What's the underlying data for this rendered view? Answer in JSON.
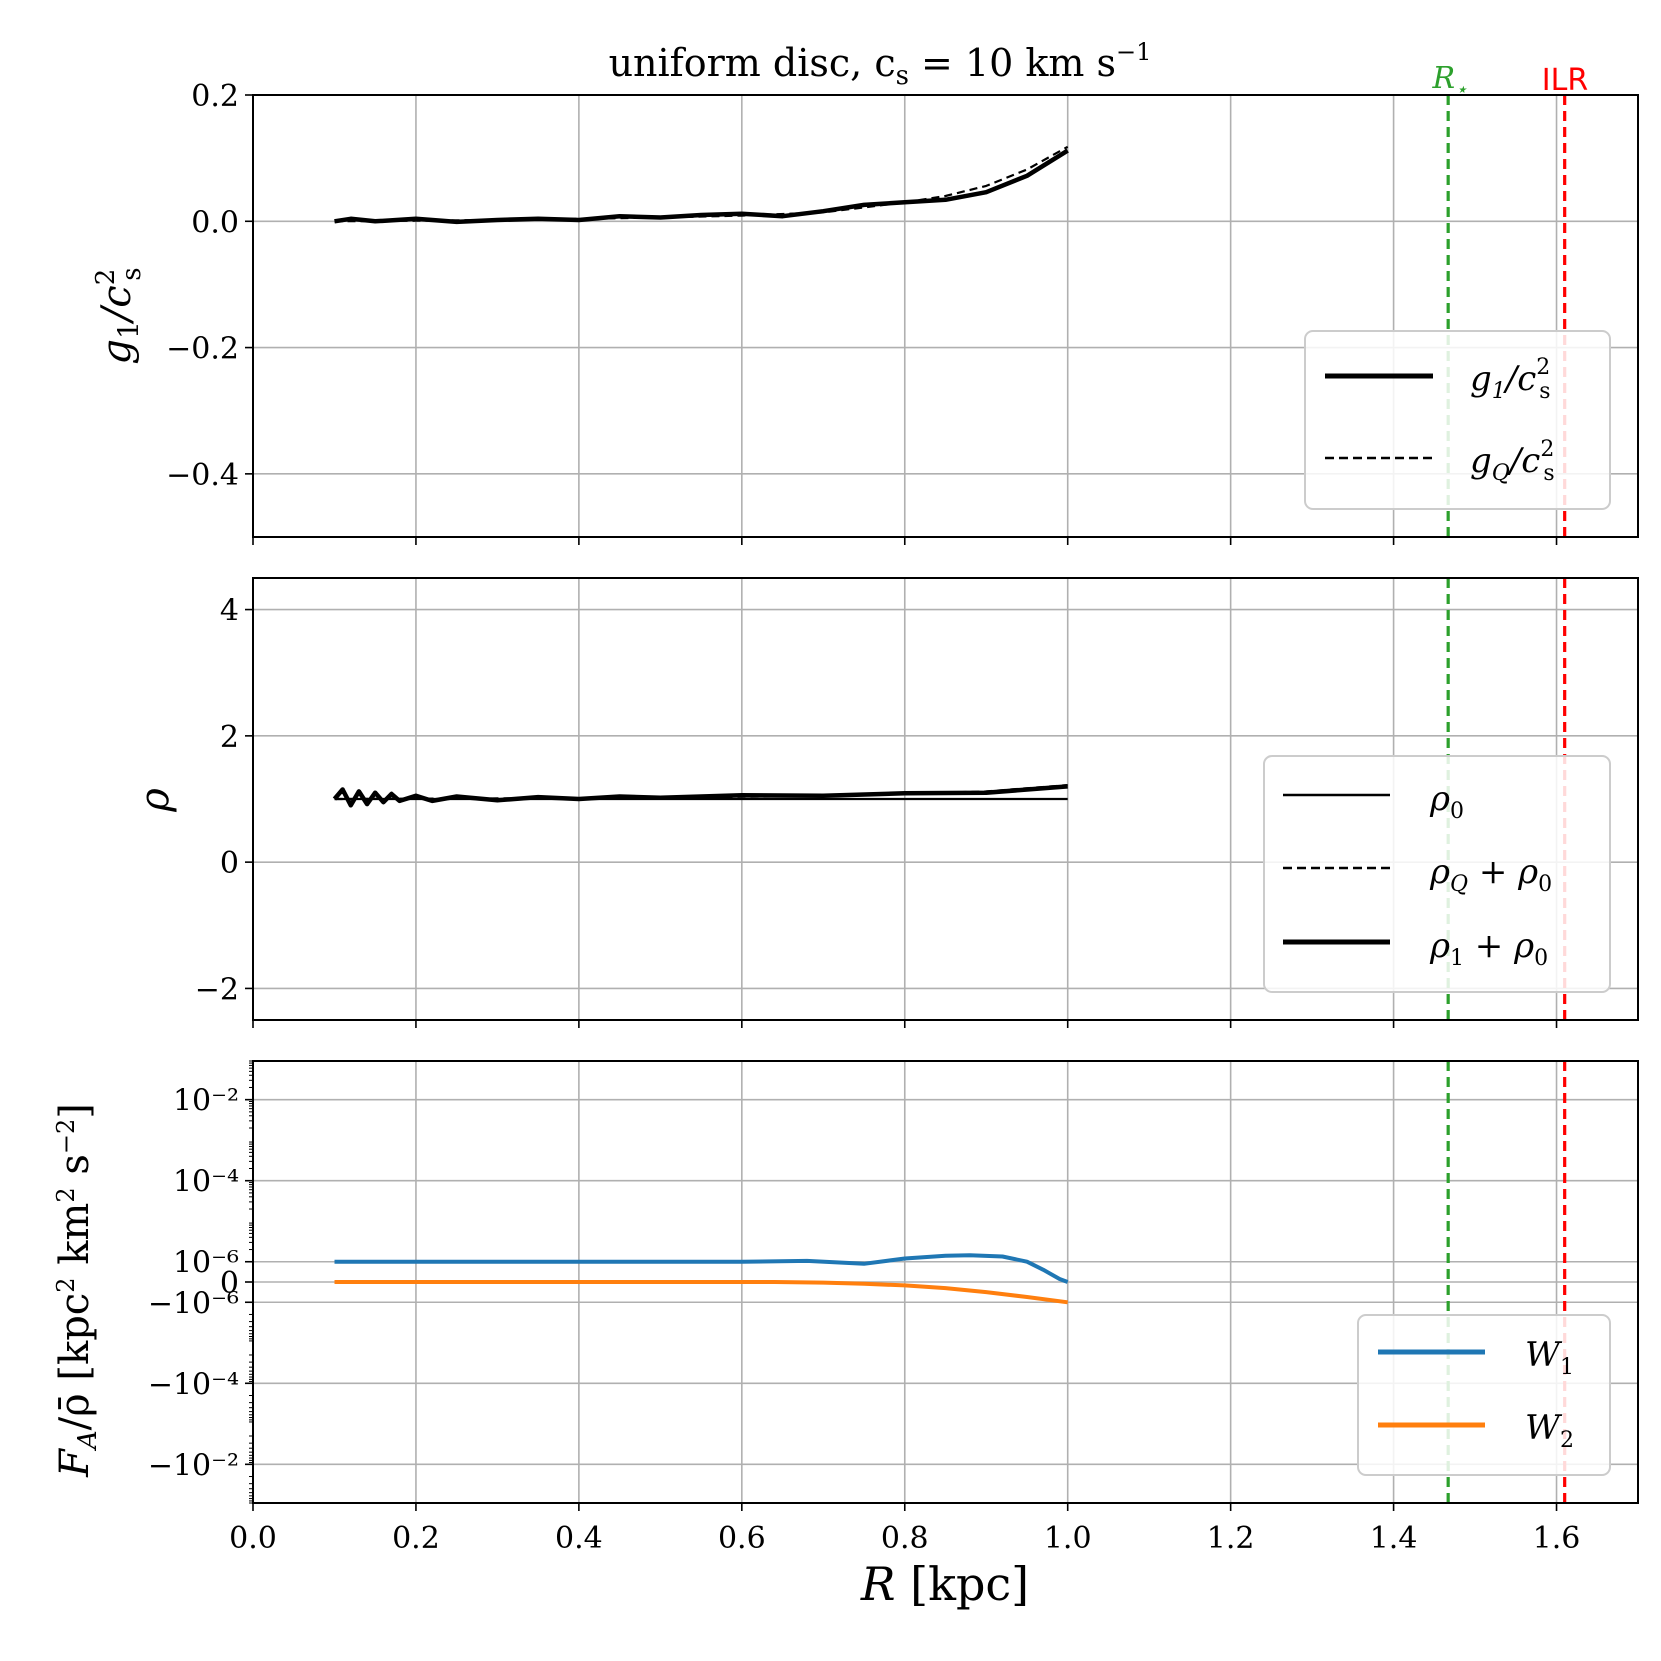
{
  "chart_data": {
    "type": "line",
    "title": "uniform disc, c_s = 10 km s^-1",
    "xlabel": "R [kpc]",
    "xlim": [
      0.0,
      1.7
    ],
    "xticks": [
      "0.0",
      "0.2",
      "0.4",
      "0.6",
      "0.8",
      "1.0",
      "1.2",
      "1.4",
      "1.6"
    ],
    "xtick_values": [
      0.0,
      0.2,
      0.4,
      0.6,
      0.8,
      1.0,
      1.2,
      1.4,
      1.6
    ],
    "vlines": [
      {
        "name": "R⋆",
        "x": 1.467,
        "color": "#2ca02c"
      },
      {
        "name": "ILR",
        "x": 1.61,
        "color": "#ff0000"
      }
    ],
    "panels": [
      {
        "ylabel": "g1/cs²",
        "ylim": [
          -0.5,
          0.2
        ],
        "yticks": [
          "0.2",
          "0.0",
          "−0.2",
          "−0.4"
        ],
        "ytick_values": [
          0.2,
          0.0,
          -0.2,
          -0.4
        ],
        "legend_position": "lower-right",
        "series": [
          {
            "name": "g1/cs²",
            "style": "solid-thick",
            "color": "#000000",
            "x": [
              0.1,
              0.12,
              0.15,
              0.2,
              0.25,
              0.3,
              0.35,
              0.4,
              0.45,
              0.5,
              0.55,
              0.6,
              0.65,
              0.7,
              0.75,
              0.8,
              0.85,
              0.9,
              0.95,
              1.0
            ],
            "y": [
              0.0,
              0.004,
              0.0,
              0.004,
              -0.001,
              0.002,
              0.004,
              0.002,
              0.008,
              0.006,
              0.01,
              0.012,
              0.008,
              0.016,
              0.026,
              0.03,
              0.034,
              0.046,
              0.072,
              0.112
            ]
          },
          {
            "name": "gQ/cs²",
            "style": "dashed",
            "color": "#000000",
            "x": [
              0.1,
              0.2,
              0.3,
              0.4,
              0.5,
              0.6,
              0.7,
              0.75,
              0.8,
              0.85,
              0.9,
              0.95,
              1.0
            ],
            "y": [
              0.0,
              0.001,
              0.002,
              0.004,
              0.006,
              0.009,
              0.014,
              0.022,
              0.03,
              0.04,
              0.056,
              0.082,
              0.118
            ]
          }
        ]
      },
      {
        "ylabel": "ρ",
        "ylim": [
          -2.5,
          4.5
        ],
        "yticks": [
          "4",
          "2",
          "0",
          "−2"
        ],
        "ytick_values": [
          4,
          2,
          0,
          -2
        ],
        "legend_position": "lower-right",
        "series": [
          {
            "name": "ρ0",
            "style": "solid-thin",
            "color": "#000000",
            "x": [
              0.1,
              1.0
            ],
            "y": [
              1.0,
              1.0
            ]
          },
          {
            "name": "ρQ + ρ0",
            "style": "dashed",
            "color": "#000000",
            "x": [
              0.1,
              0.3,
              0.5,
              0.7,
              0.8,
              0.9,
              1.0
            ],
            "y": [
              1.0,
              1.01,
              1.02,
              1.05,
              1.08,
              1.12,
              1.22
            ]
          },
          {
            "name": "ρ1 + ρ0",
            "style": "solid-thick",
            "color": "#000000",
            "x": [
              0.1,
              0.11,
              0.12,
              0.13,
              0.14,
              0.15,
              0.16,
              0.17,
              0.18,
              0.2,
              0.22,
              0.25,
              0.3,
              0.35,
              0.4,
              0.45,
              0.5,
              0.6,
              0.7,
              0.8,
              0.9,
              1.0
            ],
            "y": [
              1.0,
              1.15,
              0.9,
              1.12,
              0.92,
              1.1,
              0.95,
              1.08,
              0.97,
              1.05,
              0.97,
              1.04,
              0.98,
              1.03,
              1.0,
              1.04,
              1.02,
              1.06,
              1.05,
              1.09,
              1.1,
              1.2
            ]
          }
        ]
      },
      {
        "ylabel": "FA/ρ̄ [kpc² km² s⁻²]",
        "yscale": "symlog",
        "ylim": [
          -0.09,
          0.09
        ],
        "yticks": [
          "10⁻²",
          "10⁻⁴",
          "10⁻⁶",
          "0",
          "−10⁻⁶",
          "−10⁻⁴",
          "−10⁻²"
        ],
        "ytick_values": [
          0.01,
          0.0001,
          1e-06,
          0,
          -1e-06,
          -0.0001,
          -0.01
        ],
        "legend_position": "lower-right",
        "series": [
          {
            "name": "W1",
            "style": "solid",
            "color": "#1f77b4",
            "x": [
              0.1,
              0.3,
              0.5,
              0.6,
              0.68,
              0.75,
              0.8,
              0.85,
              0.88,
              0.92,
              0.95,
              0.97,
              0.99,
              1.0
            ],
            "y": [
              1e-06,
              1e-06,
              1e-06,
              1e-06,
              1.05e-06,
              9e-07,
              1.2e-06,
              1.4e-06,
              1.45e-06,
              1.35e-06,
              1e-06,
              6e-07,
              1.5e-07,
              0
            ]
          },
          {
            "name": "W2",
            "style": "solid",
            "color": "#ff7f0e",
            "x": [
              0.1,
              0.3,
              0.5,
              0.64,
              0.7,
              0.75,
              0.8,
              0.85,
              0.9,
              0.95,
              1.0
            ],
            "y": [
              0,
              0,
              0,
              0,
              -3e-08,
              -9e-08,
              -1.7e-07,
              -3e-07,
              -5e-07,
              -7.4e-07,
              -1e-06
            ]
          }
        ]
      }
    ]
  },
  "legends": {
    "top": [
      {
        "style": "solid-thick",
        "name": "g",
        "sub": "1",
        "div": "/c",
        "sup": "2",
        "sub2": "s"
      },
      {
        "style": "dashed",
        "name": "g",
        "sub": "Q",
        "div": "/c",
        "sup": "2",
        "sub2": "s"
      }
    ],
    "middle": [
      {
        "style": "solid-thin",
        "a": "ρ",
        "asub": "0",
        "op": "",
        "b": "",
        "bsub": ""
      },
      {
        "style": "dashed",
        "a": "ρ",
        "asub": "Q",
        "op": " + ",
        "b": "ρ",
        "bsub": "0"
      },
      {
        "style": "solid-thick",
        "a": "ρ",
        "asub": "1",
        "op": " + ",
        "b": "ρ",
        "bsub": "0"
      }
    ],
    "bottom": [
      {
        "color": "#1f77b4",
        "name": "W",
        "sub": "1"
      },
      {
        "color": "#ff7f0e",
        "name": "W",
        "sub": "2"
      }
    ]
  },
  "labels": {
    "title_main": "uniform disc, c",
    "title_sub": "s",
    "title_eq": " = 10 km s",
    "title_sup": "−1",
    "xlabel_main": "R",
    "xlabel_unit": " [kpc]",
    "vline_rstar_main": "R",
    "vline_rstar_sub": "⋆",
    "vline_ilr": "ILR",
    "ylabel_top_g": "g",
    "ylabel_top_1": "1",
    "ylabel_top_div": "/c",
    "ylabel_top_sup": "2",
    "ylabel_top_s": "s",
    "ylabel_mid": "ρ",
    "ylabel_bot_F": "F",
    "ylabel_bot_A": "A",
    "ylabel_bot_rest": "/ρ̄  [kpc",
    "ylabel_bot_2a": "2",
    "ylabel_bot_km": " km",
    "ylabel_bot_2b": "2",
    "ylabel_bot_s": " s",
    "ylabel_bot_m2": "−2",
    "ylabel_bot_close": "]"
  }
}
